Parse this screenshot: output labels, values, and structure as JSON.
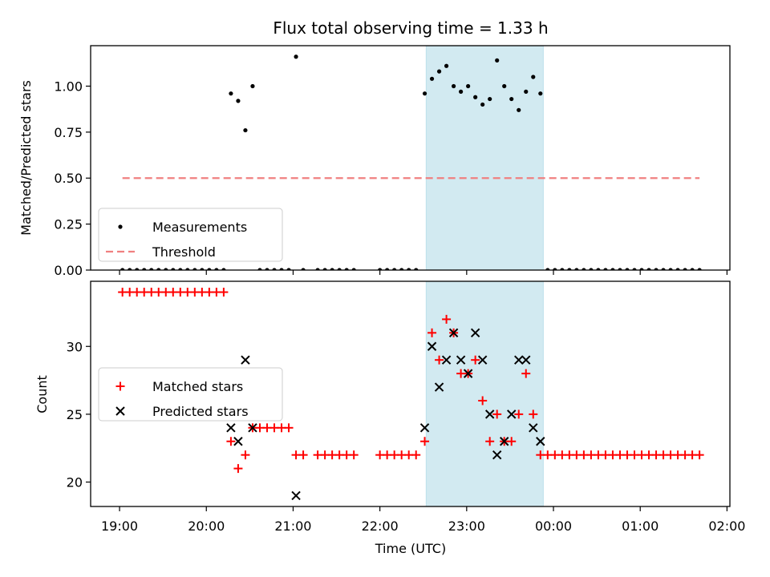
{
  "colors": {
    "shade": "#add8e6",
    "threshold": "#f08080",
    "measurement": "#000000",
    "matched": "#ff0000",
    "predicted": "#000000"
  },
  "chart_data": [
    {
      "type": "scatter",
      "title": "Flux total observing time = 1.33 h",
      "ylabel": "Matched/Predicted stars",
      "xlabel": "",
      "ylim": [
        0,
        1.22
      ],
      "yticks": [
        0,
        0.25,
        0.5,
        0.75,
        1.0
      ],
      "ytick_labels": [
        "0.00",
        "0.25",
        "0.50",
        "0.75",
        "1.00"
      ],
      "xlim": [
        "18:40",
        "02:02"
      ],
      "xticks": [
        "19:00",
        "20:00",
        "21:00",
        "22:00",
        "23:00",
        "00:00",
        "01:00",
        "02:00"
      ],
      "shaded_interval": [
        "22:32",
        "23:53"
      ],
      "legend": {
        "placement": "lower-left",
        "entries": [
          "Measurements",
          "Threshold"
        ]
      },
      "series": [
        {
          "name": "Measurements",
          "marker": "dot",
          "points": [
            [
              "19:02",
              0
            ],
            [
              "19:07",
              0
            ],
            [
              "19:12",
              0
            ],
            [
              "19:17",
              0
            ],
            [
              "19:22",
              0
            ],
            [
              "19:27",
              0
            ],
            [
              "19:32",
              0
            ],
            [
              "19:37",
              0
            ],
            [
              "19:42",
              0
            ],
            [
              "19:47",
              0
            ],
            [
              "19:52",
              0
            ],
            [
              "19:57",
              0
            ],
            [
              "20:02",
              0
            ],
            [
              "20:07",
              0
            ],
            [
              "20:12",
              0
            ],
            [
              "20:17",
              0.96
            ],
            [
              "20:22",
              0.92
            ],
            [
              "20:27",
              0.76
            ],
            [
              "20:32",
              1.0
            ],
            [
              "20:37",
              0
            ],
            [
              "20:42",
              0
            ],
            [
              "20:47",
              0
            ],
            [
              "20:52",
              0
            ],
            [
              "20:57",
              0
            ],
            [
              "21:02",
              1.16
            ],
            [
              "21:07",
              0
            ],
            [
              "21:17",
              0
            ],
            [
              "21:22",
              0
            ],
            [
              "21:27",
              0
            ],
            [
              "21:32",
              0
            ],
            [
              "21:37",
              0
            ],
            [
              "21:42",
              0
            ],
            [
              "22:00",
              0
            ],
            [
              "22:05",
              0
            ],
            [
              "22:10",
              0
            ],
            [
              "22:15",
              0
            ],
            [
              "22:20",
              0
            ],
            [
              "22:25",
              0
            ],
            [
              "22:31",
              0.96
            ],
            [
              "22:36",
              1.04
            ],
            [
              "22:41",
              1.08
            ],
            [
              "22:46",
              1.11
            ],
            [
              "22:51",
              1.0
            ],
            [
              "22:56",
              0.97
            ],
            [
              "23:01",
              1.0
            ],
            [
              "23:06",
              0.94
            ],
            [
              "23:11",
              0.9
            ],
            [
              "23:16",
              0.93
            ],
            [
              "23:21",
              1.14
            ],
            [
              "23:26",
              1.0
            ],
            [
              "23:31",
              0.93
            ],
            [
              "23:36",
              0.87
            ],
            [
              "23:41",
              0.97
            ],
            [
              "23:46",
              1.05
            ],
            [
              "23:51",
              0.96
            ],
            [
              "23:56",
              0
            ],
            [
              "00:01",
              0
            ],
            [
              "00:06",
              0
            ],
            [
              "00:11",
              0
            ],
            [
              "00:16",
              0
            ],
            [
              "00:21",
              0
            ],
            [
              "00:26",
              0
            ],
            [
              "00:31",
              0
            ],
            [
              "00:36",
              0
            ],
            [
              "00:41",
              0
            ],
            [
              "00:46",
              0
            ],
            [
              "00:51",
              0
            ],
            [
              "00:56",
              0
            ],
            [
              "01:01",
              0
            ],
            [
              "01:06",
              0
            ],
            [
              "01:11",
              0
            ],
            [
              "01:16",
              0
            ],
            [
              "01:21",
              0
            ],
            [
              "01:26",
              0
            ],
            [
              "01:31",
              0
            ],
            [
              "01:36",
              0
            ],
            [
              "01:41",
              0
            ]
          ]
        },
        {
          "name": "Threshold",
          "marker": "dashed-line",
          "points": [
            [
              "19:02",
              0.5
            ],
            [
              "01:41",
              0.5
            ]
          ]
        }
      ]
    },
    {
      "type": "scatter",
      "ylabel": "Count",
      "xlabel": "Time (UTC)",
      "ylim": [
        18.2,
        34.8
      ],
      "yticks": [
        20,
        25,
        30
      ],
      "ytick_labels": [
        "20",
        "25",
        "30"
      ],
      "xlim": [
        "18:40",
        "02:02"
      ],
      "xticks": [
        "19:00",
        "20:00",
        "21:00",
        "22:00",
        "23:00",
        "00:00",
        "01:00",
        "02:00"
      ],
      "xtick_labels": [
        "19:00",
        "20:00",
        "21:00",
        "22:00",
        "23:00",
        "00:00",
        "01:00",
        "02:00"
      ],
      "shaded_interval": [
        "22:32",
        "23:53"
      ],
      "legend": {
        "placement": "center-left",
        "entries": [
          "Matched stars",
          "Predicted stars"
        ]
      },
      "series": [
        {
          "name": "Matched stars",
          "marker": "plus",
          "points": [
            [
              "19:02",
              34
            ],
            [
              "19:07",
              34
            ],
            [
              "19:12",
              34
            ],
            [
              "19:17",
              34
            ],
            [
              "19:22",
              34
            ],
            [
              "19:27",
              34
            ],
            [
              "19:32",
              34
            ],
            [
              "19:37",
              34
            ],
            [
              "19:42",
              34
            ],
            [
              "19:47",
              34
            ],
            [
              "19:52",
              34
            ],
            [
              "19:57",
              34
            ],
            [
              "20:02",
              34
            ],
            [
              "20:07",
              34
            ],
            [
              "20:12",
              34
            ],
            [
              "20:17",
              23
            ],
            [
              "20:22",
              21
            ],
            [
              "20:27",
              22
            ],
            [
              "20:32",
              24
            ],
            [
              "20:37",
              24
            ],
            [
              "20:42",
              24
            ],
            [
              "20:47",
              24
            ],
            [
              "20:52",
              24
            ],
            [
              "20:57",
              24
            ],
            [
              "21:02",
              22
            ],
            [
              "21:07",
              22
            ],
            [
              "21:17",
              22
            ],
            [
              "21:22",
              22
            ],
            [
              "21:27",
              22
            ],
            [
              "21:32",
              22
            ],
            [
              "21:37",
              22
            ],
            [
              "21:42",
              22
            ],
            [
              "22:00",
              22
            ],
            [
              "22:05",
              22
            ],
            [
              "22:10",
              22
            ],
            [
              "22:15",
              22
            ],
            [
              "22:20",
              22
            ],
            [
              "22:25",
              22
            ],
            [
              "22:31",
              23
            ],
            [
              "22:36",
              31
            ],
            [
              "22:41",
              29
            ],
            [
              "22:46",
              32
            ],
            [
              "22:51",
              31
            ],
            [
              "22:56",
              28
            ],
            [
              "23:01",
              28
            ],
            [
              "23:06",
              29
            ],
            [
              "23:11",
              26
            ],
            [
              "23:16",
              23
            ],
            [
              "23:21",
              25
            ],
            [
              "23:26",
              23
            ],
            [
              "23:31",
              23
            ],
            [
              "23:36",
              25
            ],
            [
              "23:41",
              28
            ],
            [
              "23:46",
              25
            ],
            [
              "23:51",
              22
            ],
            [
              "23:56",
              22
            ],
            [
              "00:01",
              22
            ],
            [
              "00:06",
              22
            ],
            [
              "00:11",
              22
            ],
            [
              "00:16",
              22
            ],
            [
              "00:21",
              22
            ],
            [
              "00:26",
              22
            ],
            [
              "00:31",
              22
            ],
            [
              "00:36",
              22
            ],
            [
              "00:41",
              22
            ],
            [
              "00:46",
              22
            ],
            [
              "00:51",
              22
            ],
            [
              "00:56",
              22
            ],
            [
              "01:01",
              22
            ],
            [
              "01:06",
              22
            ],
            [
              "01:11",
              22
            ],
            [
              "01:16",
              22
            ],
            [
              "01:21",
              22
            ],
            [
              "01:26",
              22
            ],
            [
              "01:31",
              22
            ],
            [
              "01:36",
              22
            ],
            [
              "01:41",
              22
            ]
          ]
        },
        {
          "name": "Predicted stars",
          "marker": "x",
          "points": [
            [
              "20:17",
              24
            ],
            [
              "20:22",
              23
            ],
            [
              "20:27",
              29
            ],
            [
              "20:32",
              24
            ],
            [
              "21:02",
              19
            ],
            [
              "22:31",
              24
            ],
            [
              "22:36",
              30
            ],
            [
              "22:41",
              27
            ],
            [
              "22:46",
              29
            ],
            [
              "22:51",
              31
            ],
            [
              "22:56",
              29
            ],
            [
              "23:01",
              28
            ],
            [
              "23:06",
              31
            ],
            [
              "23:11",
              29
            ],
            [
              "23:16",
              25
            ],
            [
              "23:21",
              22
            ],
            [
              "23:26",
              23
            ],
            [
              "23:31",
              25
            ],
            [
              "23:36",
              29
            ],
            [
              "23:41",
              29
            ],
            [
              "23:46",
              24
            ],
            [
              "23:51",
              23
            ]
          ]
        }
      ]
    }
  ]
}
